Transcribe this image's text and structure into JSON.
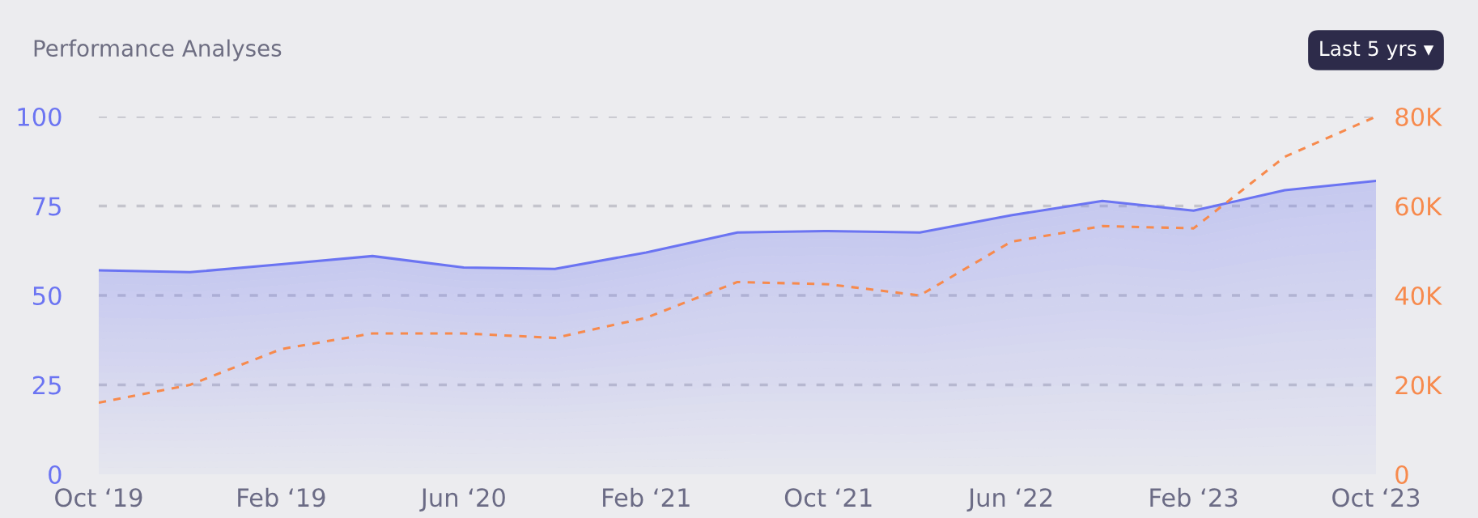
{
  "chart_data": {
    "type": "area",
    "title": "Performance Analyses",
    "annotations": [
      "Last 5 yrs ▾"
    ],
    "categories": [
      "Oct ‘19",
      null,
      "Feb ‘19",
      null,
      "Jun ‘20",
      null,
      "Feb ‘21",
      null,
      "Oct ‘21",
      null,
      "Jun ‘22",
      null,
      "Feb ‘23",
      null,
      "Oct ‘23"
    ],
    "series": [
      {
        "color": "#6b74f2",
        "values": [
          57,
          56.5,
          58.7,
          61,
          57.8,
          57.4,
          62,
          67.6,
          68,
          67.6,
          72.4,
          76.4,
          73.7,
          79.4,
          82
        ]
      },
      {
        "type": "line",
        "axis": "y2",
        "color": "#f78a4d",
        "line_style": "dashed",
        "values": [
          16,
          20,
          28,
          31.5,
          31.5,
          30.5,
          35,
          43,
          42.5,
          40,
          52,
          55.5,
          55,
          71,
          80
        ]
      }
    ],
    "ylim": [
      0,
      100
    ],
    "yticks": [
      0,
      25,
      50,
      75,
      100
    ],
    "y2lim": [
      0,
      80
    ],
    "y2ticks": [
      {
        "value": 0,
        "label": "0"
      },
      {
        "value": 20,
        "label": "20K"
      },
      {
        "value": 40,
        "label": "40K"
      },
      {
        "value": 60,
        "label": "60K"
      },
      {
        "value": 80,
        "label": "80K"
      }
    ],
    "grid": "y"
  }
}
